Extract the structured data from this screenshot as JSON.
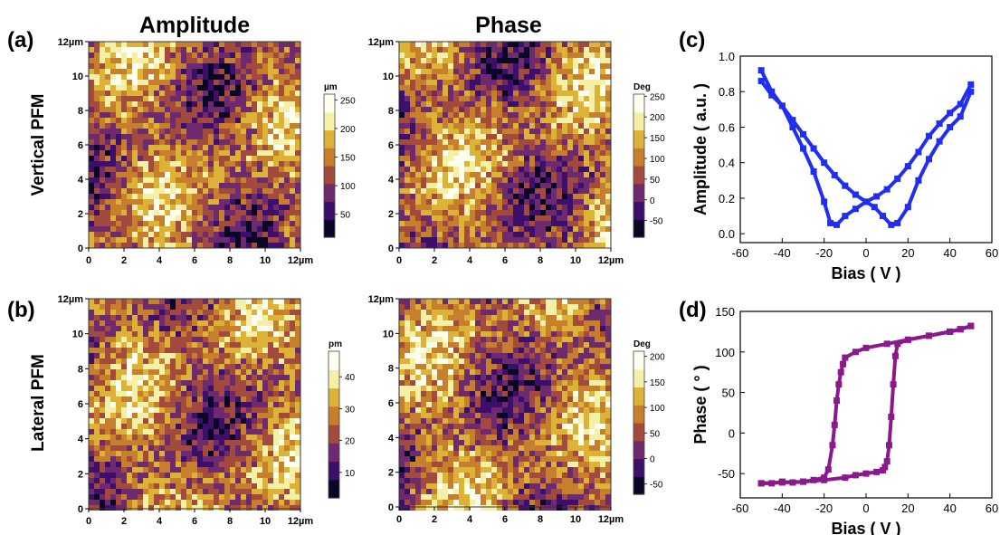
{
  "headers": {
    "amplitude": "Amplitude",
    "phase": "Phase"
  },
  "row_labels": {
    "a": "(a)",
    "b": "(b)",
    "c": "(c)",
    "d": "(d)"
  },
  "row_titles": {
    "vertical": "Vertical PFM",
    "lateral": "Lateral PFM"
  },
  "map_axis": {
    "ticks": [
      "0",
      "2",
      "4",
      "6",
      "8",
      "10",
      "12µm"
    ]
  },
  "colormap": [
    "#0a0726",
    "#3b0f6a",
    "#6e2a6e",
    "#a34a3f",
    "#c67f2c",
    "#dcb237",
    "#f5f0a8",
    "#fffff0"
  ],
  "maps": [
    {
      "id": "vert-amp",
      "unit": "µm",
      "colorbar_ticks": [
        "250",
        "200",
        "150",
        "100",
        "50"
      ],
      "range": [
        10,
        260
      ]
    },
    {
      "id": "vert-phase",
      "unit": "Deg",
      "colorbar_ticks": [
        "250",
        "200",
        "150",
        "100",
        "50",
        "0",
        "-50"
      ],
      "range": [
        -90,
        255
      ]
    },
    {
      "id": "lat-amp",
      "unit": "pm",
      "colorbar_ticks": [
        "40",
        "30",
        "20",
        "10"
      ],
      "range": [
        2,
        48
      ]
    },
    {
      "id": "lat-phase",
      "unit": "Deg",
      "colorbar_ticks": [
        "200",
        "150",
        "100",
        "50",
        "0",
        "-50"
      ],
      "range": [
        -70,
        210
      ]
    }
  ],
  "chart_data": [
    {
      "type": "scatter",
      "panel": "(c)",
      "xlabel": "Bias ( V )",
      "ylabel": "Amplitude  ( a.u. )",
      "xlim": [
        -60,
        60
      ],
      "ylim": [
        -0.05,
        1.0
      ],
      "xticks": [
        "-60",
        "-40",
        "-20",
        "0",
        "20",
        "40",
        "60"
      ],
      "yticks": [
        "0.0",
        "0.2",
        "0.4",
        "0.6",
        "0.8",
        "1.0"
      ],
      "color": "#1f2ef0",
      "series": [
        {
          "x": [
            -50,
            -45,
            -40,
            -35,
            -30,
            -25,
            -20,
            -17,
            -14,
            -10,
            -5,
            0,
            5,
            10,
            15,
            20,
            25,
            30,
            35,
            40,
            45,
            50
          ],
          "y": [
            0.92,
            0.8,
            0.72,
            0.6,
            0.48,
            0.35,
            0.18,
            0.06,
            0.05,
            0.1,
            0.14,
            0.18,
            0.21,
            0.25,
            0.31,
            0.38,
            0.46,
            0.55,
            0.62,
            0.68,
            0.73,
            0.84
          ]
        },
        {
          "x": [
            50,
            45,
            40,
            35,
            30,
            25,
            20,
            15,
            12,
            8,
            4,
            0,
            -5,
            -10,
            -15,
            -20,
            -25,
            -30,
            -35,
            -40,
            -45,
            -50
          ],
          "y": [
            0.8,
            0.66,
            0.6,
            0.52,
            0.42,
            0.3,
            0.15,
            0.06,
            0.05,
            0.1,
            0.15,
            0.18,
            0.22,
            0.27,
            0.33,
            0.4,
            0.48,
            0.56,
            0.64,
            0.72,
            0.78,
            0.86
          ]
        }
      ]
    },
    {
      "type": "scatter",
      "panel": "(d)",
      "xlabel": "Bias ( V )",
      "ylabel": "Phase  ( ° )",
      "xlim": [
        -60,
        60
      ],
      "ylim": [
        -80,
        150
      ],
      "xticks": [
        "-60",
        "-40",
        "-20",
        "0",
        "20",
        "40",
        "60"
      ],
      "yticks": [
        "-50",
        "0",
        "50",
        "100",
        "150"
      ],
      "color": "#8a1a8c",
      "series": [
        {
          "x": [
            -50,
            -45,
            -40,
            -35,
            -30,
            -25,
            -20,
            -18,
            -16,
            -15,
            -14,
            -13,
            -12,
            -11,
            -10,
            -5,
            0,
            10,
            20,
            30,
            40,
            45,
            50
          ],
          "y": [
            -62,
            -62,
            -60,
            -61,
            -60,
            -58,
            -55,
            -45,
            -15,
            10,
            40,
            60,
            75,
            85,
            93,
            100,
            105,
            110,
            115,
            120,
            125,
            128,
            132
          ]
        },
        {
          "x": [
            50,
            45,
            40,
            30,
            20,
            15,
            14,
            13,
            12,
            11,
            10,
            9,
            8,
            5,
            0,
            -5,
            -10,
            -20,
            -30,
            -40,
            -50
          ],
          "y": [
            132,
            128,
            125,
            120,
            115,
            110,
            95,
            60,
            20,
            -15,
            -35,
            -42,
            -46,
            -48,
            -50,
            -52,
            -55,
            -58,
            -60,
            -61,
            -62
          ]
        }
      ]
    }
  ]
}
